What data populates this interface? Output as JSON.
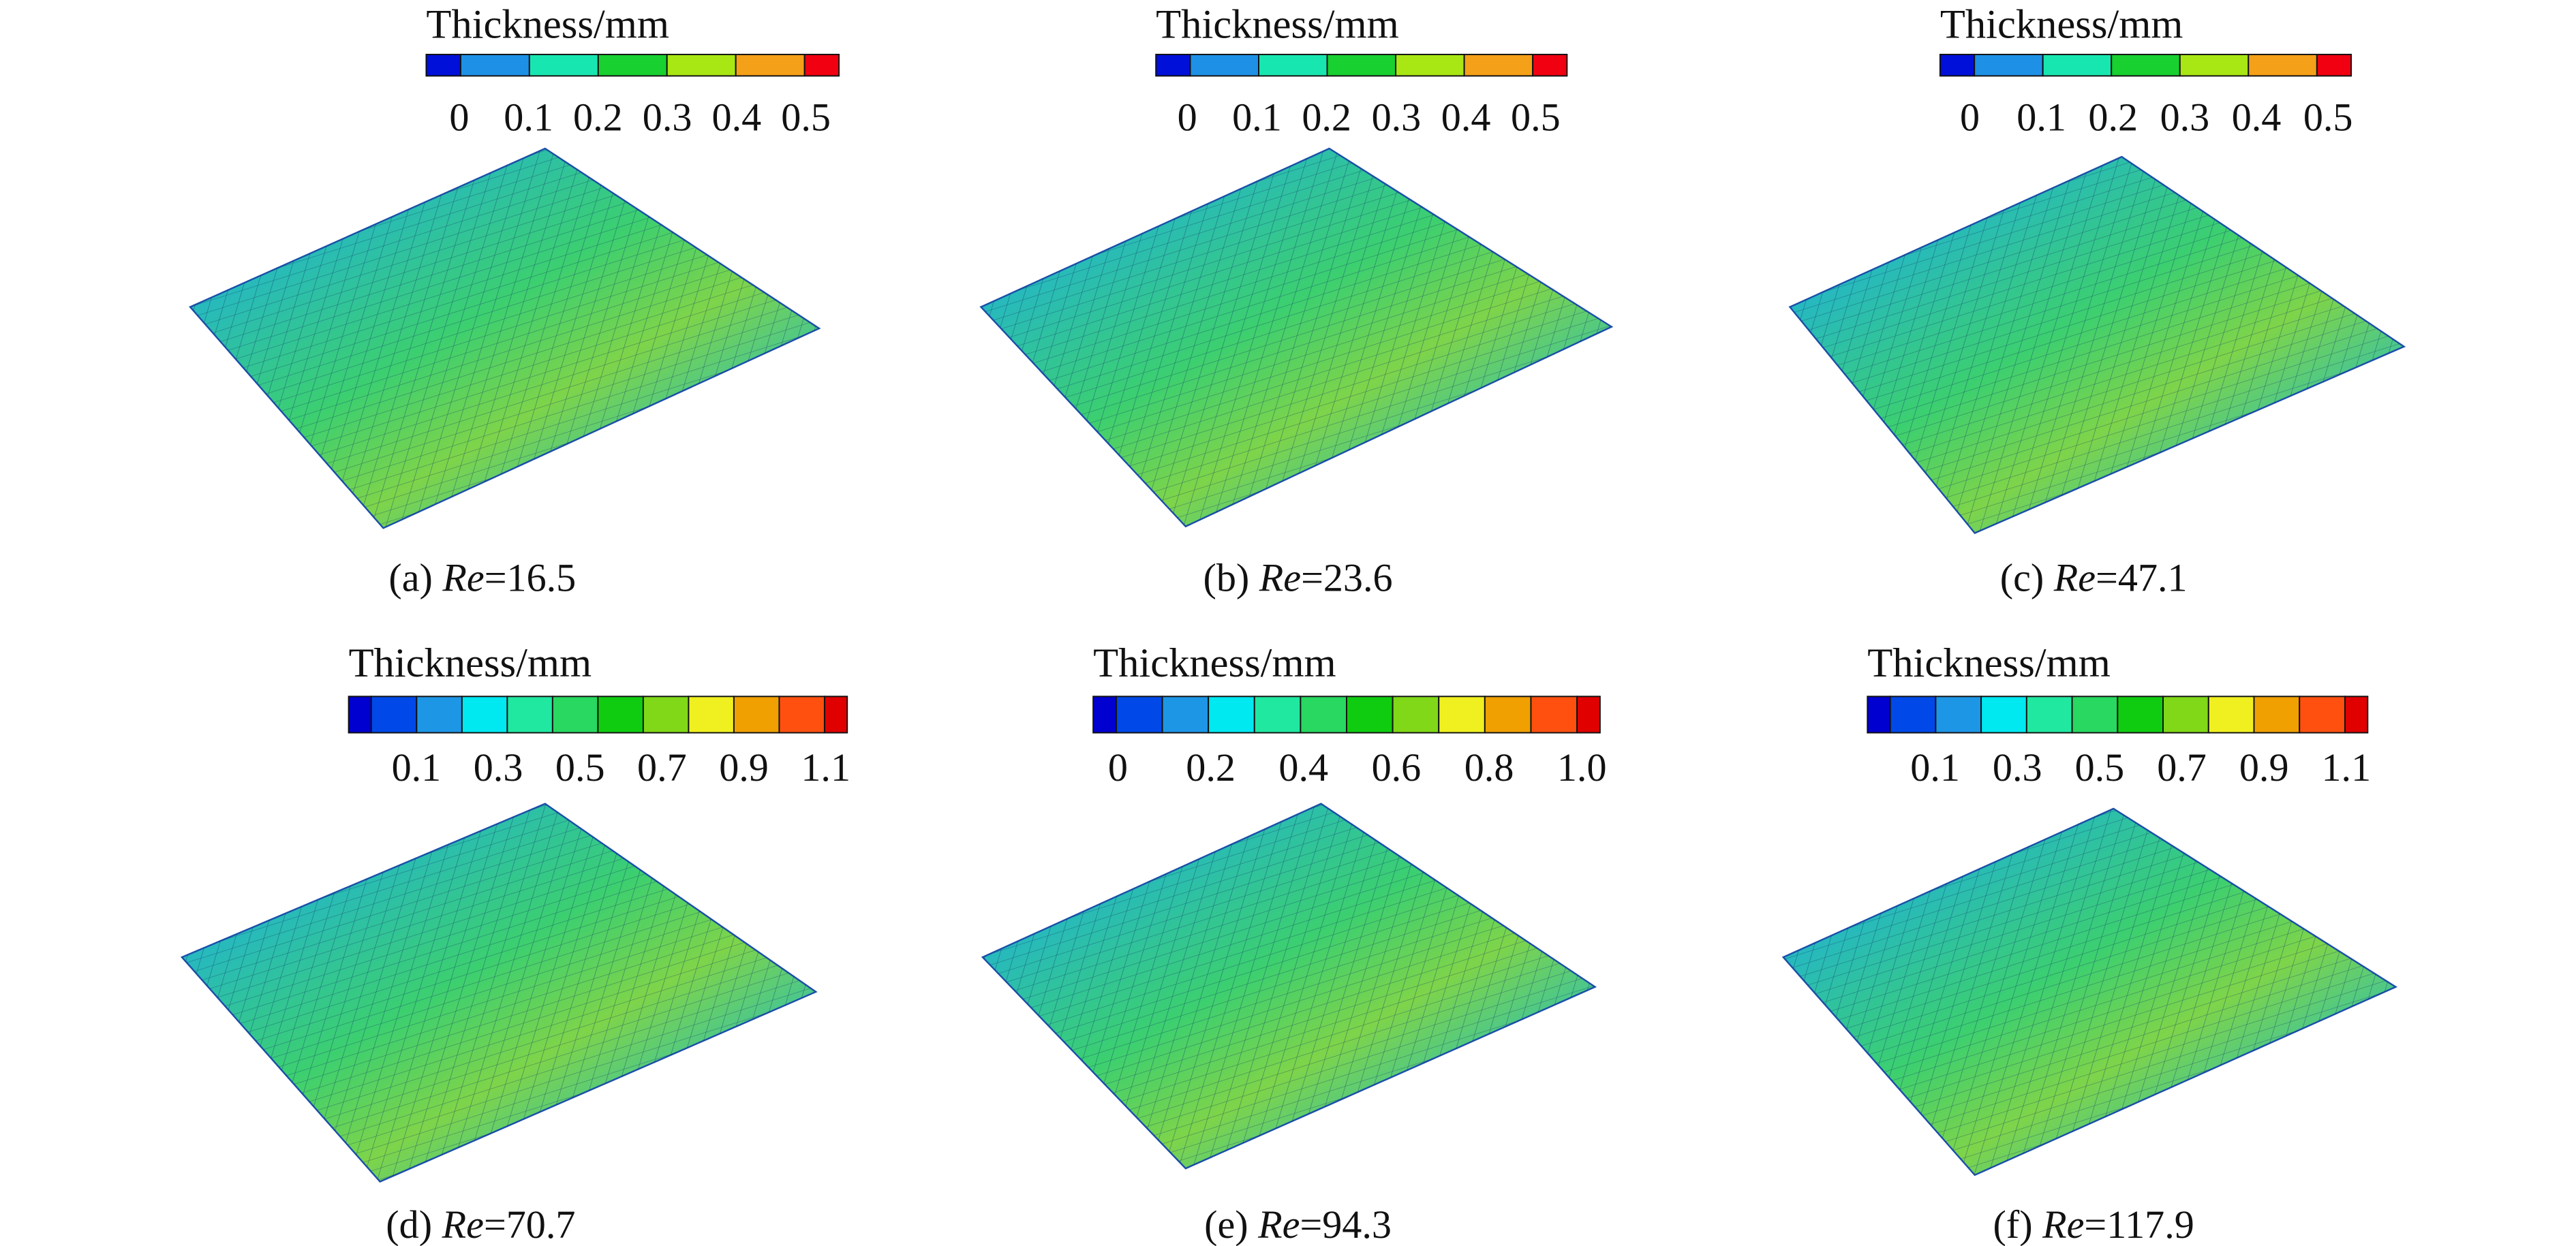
{
  "panels": [
    {
      "colorbar": {
        "title": "Thickness/mm",
        "colors": [
          "#0010d8",
          "#1e90e6",
          "#18e6b0",
          "#18d030",
          "#a8e614",
          "#f5a019",
          "#f00010"
        ],
        "ticks": [
          "0",
          "0.1",
          "0.2",
          "0.3",
          "0.4",
          "0.5"
        ]
      },
      "caption": {
        "label": "(a)",
        "symbol": "Re",
        "value": "=16.5"
      }
    },
    {
      "colorbar": {
        "title": "Thickness/mm",
        "colors": [
          "#0010d8",
          "#1e90e6",
          "#18e6b0",
          "#18d030",
          "#a8e614",
          "#f5a019",
          "#f00010"
        ],
        "ticks": [
          "0",
          "0.1",
          "0.2",
          "0.3",
          "0.4",
          "0.5"
        ]
      },
      "caption": {
        "label": "(b)",
        "symbol": "Re",
        "value": "=23.6"
      }
    },
    {
      "colorbar": {
        "title": "Thickness/mm",
        "colors": [
          "#0010d8",
          "#1e90e6",
          "#18e6b0",
          "#18d030",
          "#a8e614",
          "#f5a019",
          "#f00010"
        ],
        "ticks": [
          "0",
          "0.1",
          "0.2",
          "0.3",
          "0.4",
          "0.5"
        ]
      },
      "caption": {
        "label": "(c)",
        "symbol": "Re",
        "value": "=47.1"
      }
    },
    {
      "colorbar": {
        "title": "Thickness/mm",
        "colors": [
          "#0000d0",
          "#0048e8",
          "#1e96e6",
          "#00e8f0",
          "#20e8a0",
          "#28d860",
          "#10cc10",
          "#80d818",
          "#f0f020",
          "#f0a000",
          "#ff5010",
          "#e00000"
        ],
        "ticks": [
          "0.1",
          "0.3",
          "0.5",
          "0.7",
          "0.9",
          "1.1"
        ]
      },
      "caption": {
        "label": "(d)",
        "symbol": "Re",
        "value": "=70.7"
      }
    },
    {
      "colorbar": {
        "title": "Thickness/mm",
        "colors": [
          "#0000d0",
          "#0048e8",
          "#1e96e6",
          "#00e8f0",
          "#20e8a0",
          "#28d860",
          "#10cc10",
          "#80d818",
          "#f0f020",
          "#f0a000",
          "#ff5010",
          "#e00000"
        ],
        "ticks": [
          "0",
          "0.2",
          "0.4",
          "0.6",
          "0.8",
          "1.0"
        ]
      },
      "caption": {
        "label": "(e)",
        "symbol": "Re",
        "value": "=94.3"
      }
    },
    {
      "colorbar": {
        "title": "Thickness/mm",
        "colors": [
          "#0000d0",
          "#0048e8",
          "#1e96e6",
          "#00e8f0",
          "#20e8a0",
          "#28d860",
          "#10cc10",
          "#80d818",
          "#f0f020",
          "#f0a000",
          "#ff5010",
          "#e00000"
        ],
        "ticks": [
          "0.1",
          "0.3",
          "0.5",
          "0.7",
          "0.9",
          "1.1"
        ]
      },
      "caption": {
        "label": "(f)",
        "symbol": "Re",
        "value": "=117.9"
      }
    }
  ]
}
